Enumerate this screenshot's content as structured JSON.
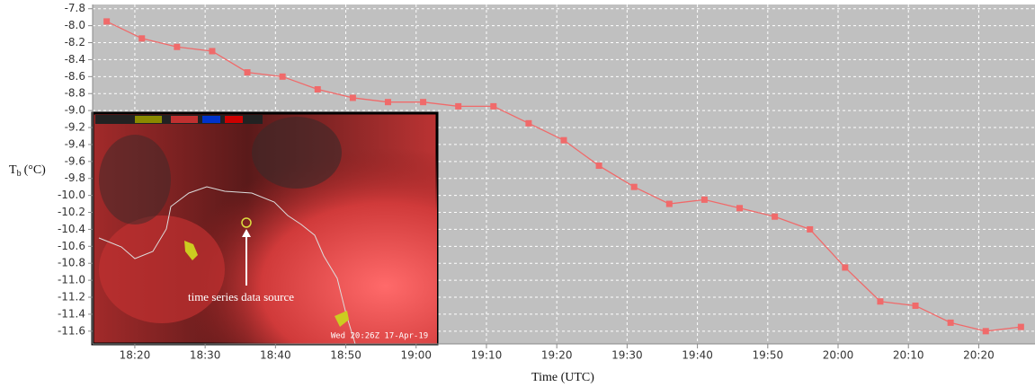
{
  "chart_data": {
    "type": "line",
    "x_label": "Time (UTC)",
    "y_label": "T",
    "y_label_sub": "b",
    "y_label_unit": "(°C)",
    "x": [
      "18:16",
      "18:21",
      "18:26",
      "18:31",
      "18:36",
      "18:41",
      "18:46",
      "18:51",
      "18:56",
      "19:01",
      "19:06",
      "19:11",
      "19:16",
      "19:21",
      "19:26",
      "19:31",
      "19:36",
      "19:41",
      "19:46",
      "19:51",
      "19:56",
      "20:01",
      "20:06",
      "20:11",
      "20:16",
      "20:21",
      "20:26"
    ],
    "series": [
      {
        "color": "#f06a6a",
        "values": [
          -7.95,
          -8.15,
          -8.25,
          -8.3,
          -8.55,
          -8.6,
          -8.75,
          -8.85,
          -8.9,
          -8.9,
          -8.95,
          -8.95,
          -9.15,
          -9.35,
          -9.65,
          -9.9,
          -10.1,
          -10.05,
          -10.15,
          -10.25,
          -10.4,
          -10.85,
          -11.25,
          -11.3,
          -11.5,
          -11.6,
          -11.55
        ]
      }
    ],
    "xlim": [
      "18:14",
      "20:28"
    ],
    "xticks": [
      "18:20",
      "18:30",
      "18:40",
      "18:50",
      "19:00",
      "19:10",
      "19:20",
      "19:30",
      "19:40",
      "19:50",
      "20:00",
      "20:10",
      "20:20"
    ],
    "ylim": [
      -11.75,
      -7.75
    ],
    "yticks": [
      -7.8,
      {
        "value": -8,
        "label": "-8.0"
      },
      -8.2,
      -8.4,
      -8.6,
      -8.8,
      {
        "value": -9,
        "label": "-9.0"
      },
      -9.2,
      -9.4,
      -9.6,
      -9.8,
      {
        "value": -10,
        "label": "-10.0"
      },
      -10.2,
      -10.4,
      -10.6,
      -10.8,
      {
        "value": -11,
        "label": "-11.0"
      },
      -11.2,
      -11.4,
      -11.6
    ],
    "grid": true,
    "inset": {
      "annotation": "time series data source",
      "timestamp": "Wed 20:26Z 17-Apr-19"
    }
  }
}
